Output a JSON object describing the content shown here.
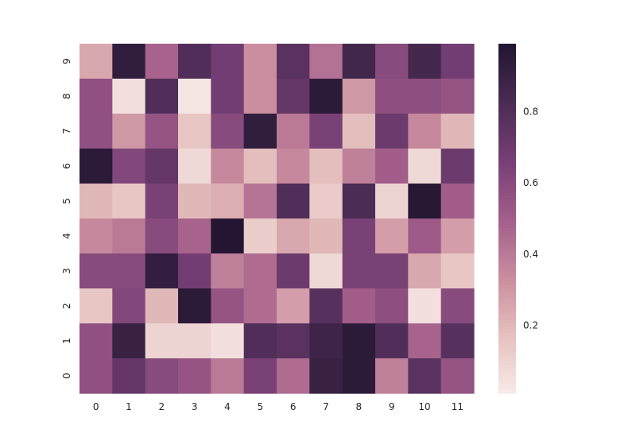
{
  "chart_data": {
    "type": "heatmap",
    "title": "",
    "xlabel": "",
    "ylabel": "",
    "x_tick_labels": [
      "0",
      "1",
      "2",
      "3",
      "4",
      "5",
      "6",
      "7",
      "8",
      "9",
      "10",
      "11"
    ],
    "y_tick_labels": [
      "9",
      "8",
      "7",
      "6",
      "5",
      "4",
      "3",
      "2",
      "1",
      "0"
    ],
    "values": [
      [
        0.25,
        0.93,
        0.48,
        0.8,
        0.68,
        0.33,
        0.77,
        0.43,
        0.86,
        0.6,
        0.85,
        0.68
      ],
      [
        0.57,
        0.05,
        0.8,
        0.03,
        0.68,
        0.33,
        0.73,
        0.95,
        0.3,
        0.58,
        0.58,
        0.55
      ],
      [
        0.57,
        0.3,
        0.55,
        0.15,
        0.6,
        0.93,
        0.4,
        0.65,
        0.18,
        0.7,
        0.35,
        0.2
      ],
      [
        0.95,
        0.62,
        0.73,
        0.08,
        0.35,
        0.18,
        0.35,
        0.18,
        0.38,
        0.5,
        0.08,
        0.7
      ],
      [
        0.2,
        0.15,
        0.65,
        0.2,
        0.23,
        0.42,
        0.8,
        0.13,
        0.82,
        0.1,
        0.97,
        0.5
      ],
      [
        0.35,
        0.4,
        0.6,
        0.48,
        0.98,
        0.12,
        0.25,
        0.2,
        0.65,
        0.28,
        0.52,
        0.28
      ],
      [
        0.6,
        0.6,
        0.92,
        0.68,
        0.38,
        0.45,
        0.7,
        0.08,
        0.65,
        0.65,
        0.25,
        0.15
      ],
      [
        0.15,
        0.62,
        0.2,
        0.95,
        0.55,
        0.45,
        0.28,
        0.78,
        0.5,
        0.58,
        0.05,
        0.6
      ],
      [
        0.57,
        0.9,
        0.1,
        0.1,
        0.05,
        0.8,
        0.77,
        0.88,
        0.95,
        0.8,
        0.48,
        0.78
      ],
      [
        0.57,
        0.73,
        0.6,
        0.55,
        0.4,
        0.65,
        0.45,
        0.9,
        0.95,
        0.38,
        0.77,
        0.55
      ]
    ],
    "colorbar": {
      "min": 0.01,
      "max": 0.99,
      "ticks": [
        0.2,
        0.4,
        0.6,
        0.8
      ],
      "tick_labels": [
        "0.2",
        "0.4",
        "0.6",
        "0.8"
      ]
    },
    "colormap": [
      "#f7ebe9",
      "#e5c0bd",
      "#c98c9e",
      "#a35d8a",
      "#763f75",
      "#4a2b53",
      "#221530"
    ],
    "grid": false,
    "legend": "colorbar-right"
  }
}
